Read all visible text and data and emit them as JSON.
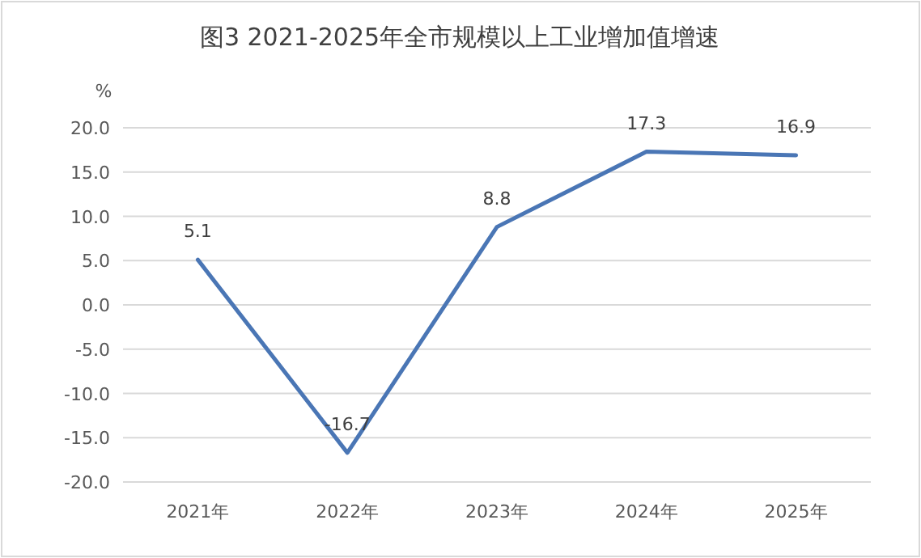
{
  "chart_data": {
    "type": "line",
    "title": "图3  2021-2025年全市规模以上工业增加值增速",
    "ylabel": "%",
    "categories": [
      "2021年",
      "2022年",
      "2023年",
      "2024年",
      "2025年"
    ],
    "series": [
      {
        "color": "#4a76b5",
        "values": [
          5.1,
          -16.7,
          8.8,
          17.3,
          16.9
        ]
      }
    ],
    "ylim": [
      -20,
      20
    ],
    "yticks": [
      {
        "value": -20,
        "label": "-20.0"
      },
      {
        "value": -15,
        "label": "-15.0"
      },
      {
        "value": -10,
        "label": "-10.0"
      },
      {
        "value": -5,
        "label": "-5.0"
      },
      {
        "value": 0,
        "label": "0.0"
      },
      {
        "value": 5,
        "label": "5.0"
      },
      {
        "value": 10,
        "label": "10.0"
      },
      {
        "value": 15,
        "label": "15.0"
      },
      {
        "value": 20,
        "label": "20.0"
      }
    ],
    "grid": "y",
    "data_labels": true
  }
}
